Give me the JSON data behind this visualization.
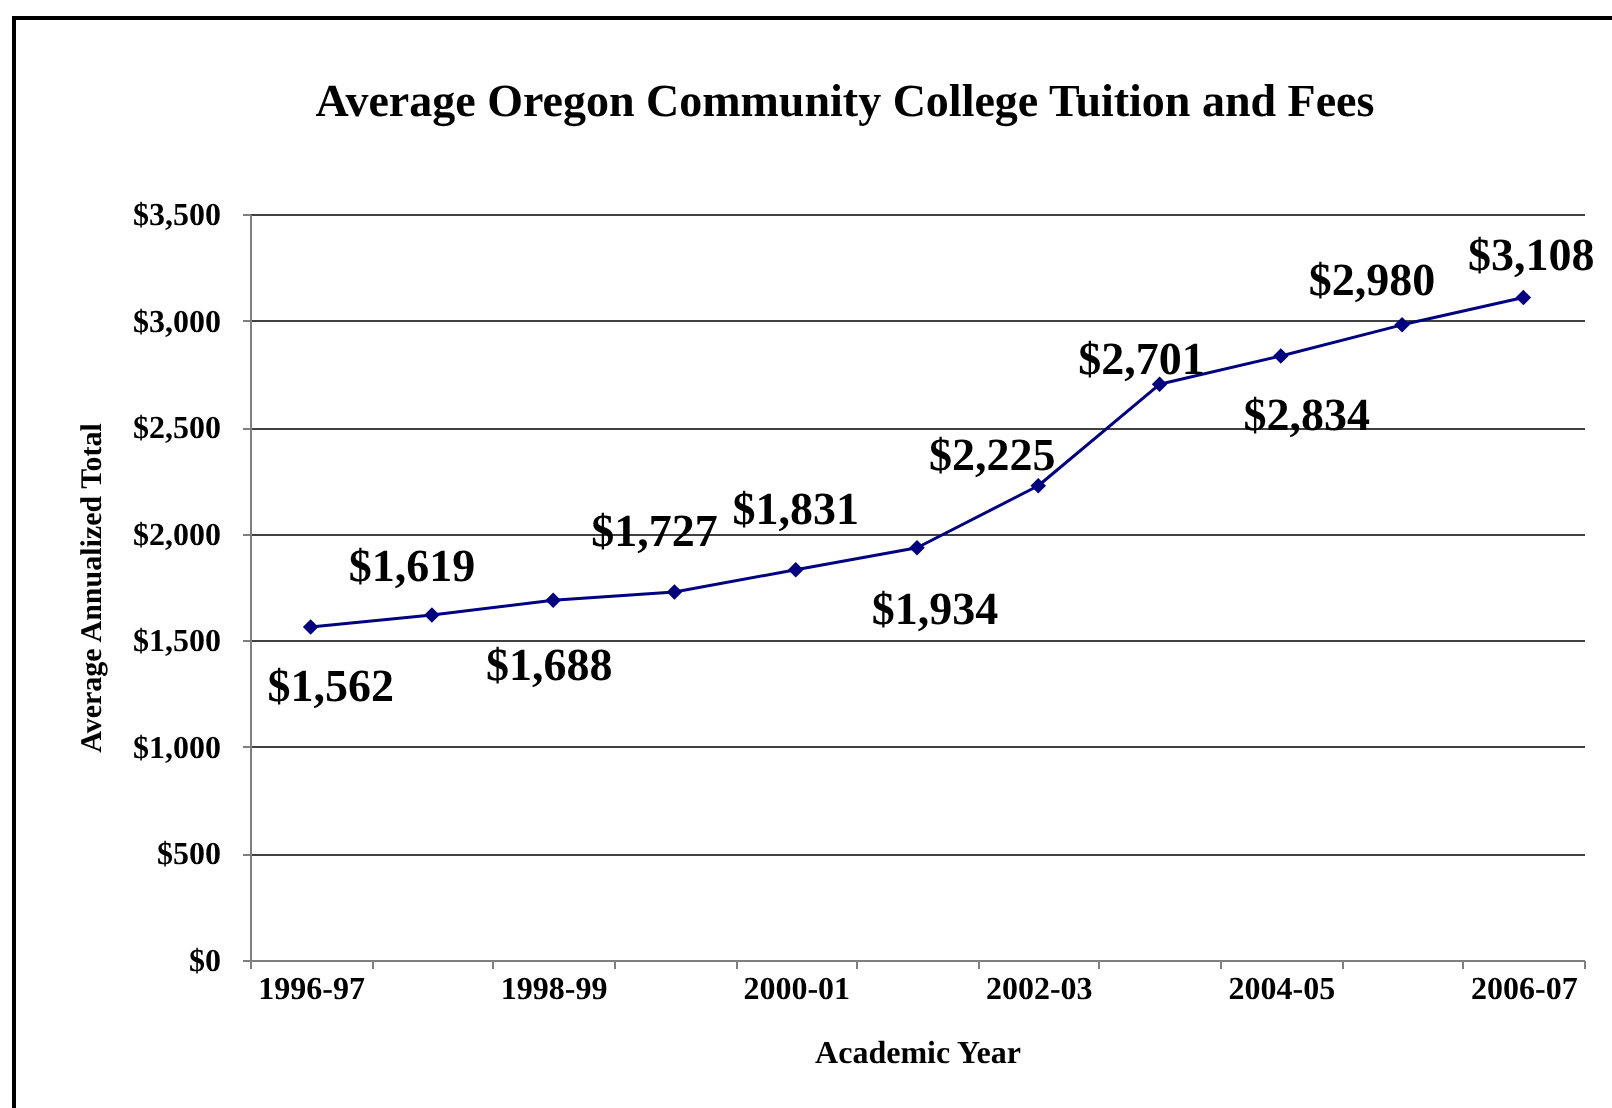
{
  "chart_data": {
    "type": "line",
    "title": "Average Oregon Community College Tuition and Fees",
    "xlabel": "Academic Year",
    "ylabel": "Average Annualized Total",
    "categories": [
      "1996-97",
      null,
      "1998-99",
      null,
      "2000-01",
      null,
      "2002-03",
      null,
      "2004-05",
      null,
      "2006-07"
    ],
    "values": [
      1562,
      1619,
      1688,
      1727,
      1831,
      1934,
      2225,
      2701,
      2834,
      2980,
      3108
    ],
    "value_labels": [
      "$1,562",
      "$1,619",
      "$1,688",
      "$1,727",
      "$1,831",
      "$1,934",
      "$2,225",
      "$2,701",
      "$2,834",
      "$2,980",
      "$3,108"
    ],
    "color": "#000080",
    "ylim": [
      0,
      3500
    ],
    "yticks": [
      {
        "value": 0,
        "label": "$0"
      },
      {
        "value": 500,
        "label": "$500"
      },
      {
        "value": 1000,
        "label": "$1,000"
      },
      {
        "value": 1500,
        "label": "$1,500"
      },
      {
        "value": 2000,
        "label": "$2,000"
      },
      {
        "value": 2500,
        "label": "$2,500"
      },
      {
        "value": 3000,
        "label": "$3,000"
      },
      {
        "value": 3500,
        "label": "$3,500"
      }
    ],
    "grid": "y",
    "marker": "diamond",
    "line_style": "solid"
  }
}
